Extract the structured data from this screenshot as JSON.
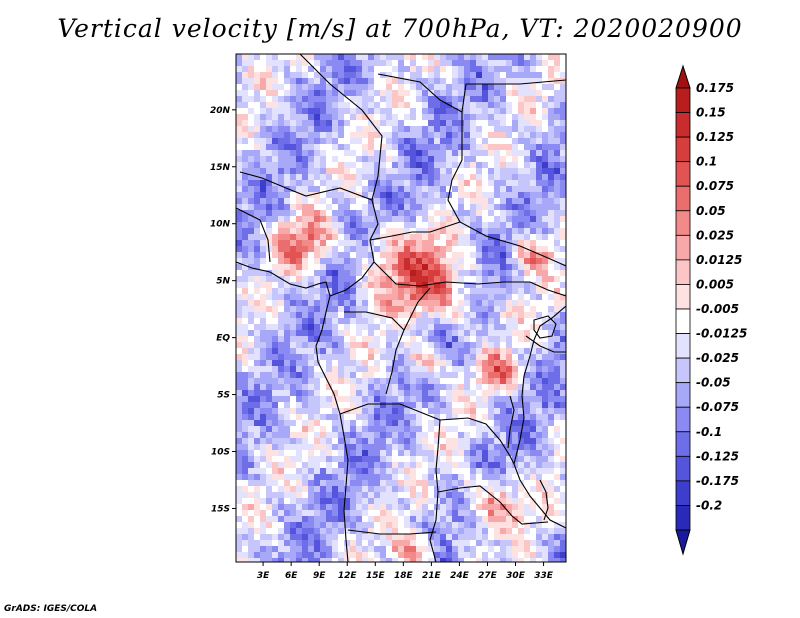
{
  "title": "Vertical velocity [m/s] at 700hPa, VT: 2020020900",
  "footer": "GrADS: IGES/COLA",
  "map": {
    "variable": "vertical velocity",
    "units": "m/s",
    "level": "700hPa",
    "valid_time": "2020020900",
    "lat_ticks": [
      {
        "value": 20,
        "label": "20N"
      },
      {
        "value": 15,
        "label": "15N"
      },
      {
        "value": 10,
        "label": "10N"
      },
      {
        "value": 5,
        "label": "5N"
      },
      {
        "value": 0,
        "label": "EQ"
      },
      {
        "value": -5,
        "label": "5S"
      },
      {
        "value": -10,
        "label": "10S"
      },
      {
        "value": -15,
        "label": "15S"
      }
    ],
    "lon_ticks": [
      {
        "value": 3,
        "label": "3E"
      },
      {
        "value": 6,
        "label": "6E"
      },
      {
        "value": 9,
        "label": "9E"
      },
      {
        "value": 12,
        "label": "12E"
      },
      {
        "value": 15,
        "label": "15E"
      },
      {
        "value": 18,
        "label": "18E"
      },
      {
        "value": 21,
        "label": "21E"
      },
      {
        "value": 24,
        "label": "24E"
      },
      {
        "value": 27,
        "label": "27E"
      },
      {
        "value": 30,
        "label": "30E"
      },
      {
        "value": 33,
        "label": "33E"
      }
    ]
  },
  "colorbar": {
    "levels": [
      {
        "label": "0.175",
        "color": "#b81e1e"
      },
      {
        "label": "0.15",
        "color": "#c82c2c"
      },
      {
        "label": "0.125",
        "color": "#d63e3e"
      },
      {
        "label": "0.1",
        "color": "#e25454"
      },
      {
        "label": "0.075",
        "color": "#eb6e6e"
      },
      {
        "label": "0.05",
        "color": "#f38a8a"
      },
      {
        "label": "0.025",
        "color": "#f8a8a8"
      },
      {
        "label": "0.0125",
        "color": "#fcc6c6"
      },
      {
        "label": "0.005",
        "color": "#fee2e2"
      },
      {
        "label": "-0.005",
        "color": "#ffffff"
      },
      {
        "label": "-0.0125",
        "color": "#e2e2fe"
      },
      {
        "label": "-0.025",
        "color": "#c6c6fc"
      },
      {
        "label": "-0.05",
        "color": "#a8a8f8"
      },
      {
        "label": "-0.075",
        "color": "#8a8af2"
      },
      {
        "label": "-0.1",
        "color": "#6e6ee8"
      },
      {
        "label": "-0.125",
        "color": "#5454dc"
      },
      {
        "label": "-0.175",
        "color": "#3e3ecc"
      },
      {
        "label": "-0.2",
        "color": "#2a2ab8"
      }
    ],
    "top_color": "#a01212",
    "bottom_color": "#1a1a9e"
  }
}
